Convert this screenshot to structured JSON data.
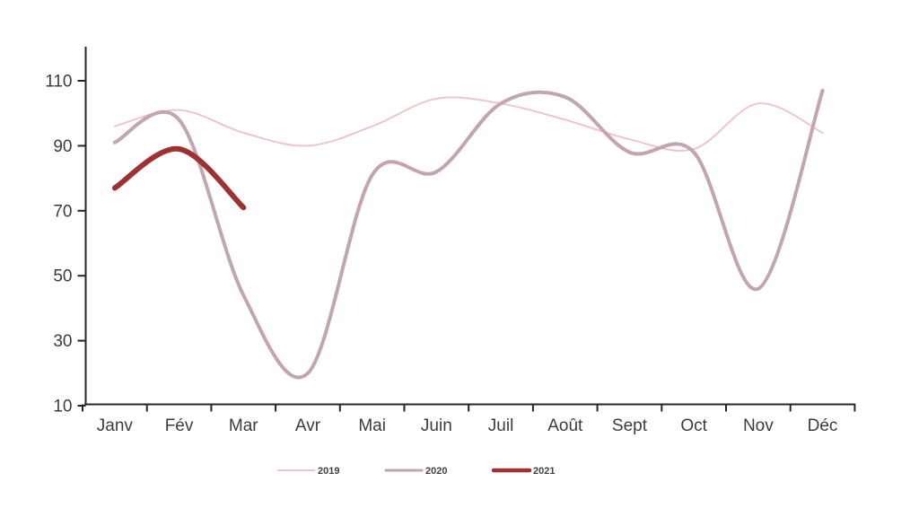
{
  "chart_data": {
    "type": "line",
    "title": "",
    "categories": [
      "Janv",
      "Fév",
      "Mar",
      "Avr",
      "Mai",
      "Juin",
      "Juil",
      "Août",
      "Sept",
      "Oct",
      "Nov",
      "Déc"
    ],
    "yticks": [
      10,
      30,
      50,
      70,
      90,
      110
    ],
    "ylim": [
      10,
      120
    ],
    "grid": false,
    "legend_position": "bottom",
    "series": [
      {
        "name": "2019",
        "values": [
          96,
          101,
          94,
          90,
          96,
          104.5,
          103,
          98,
          92,
          89,
          103,
          94
        ]
      },
      {
        "name": "2020",
        "values": [
          91,
          98,
          44,
          20,
          81,
          82,
          103,
          105,
          88,
          88,
          46,
          107
        ]
      },
      {
        "name": "2021",
        "values": [
          77,
          89,
          71
        ]
      }
    ]
  },
  "styles": {
    "series_colors": [
      "#f2c5c5",
      "#c2a5ae",
      "#9e3232"
    ],
    "series_widths": [
      2,
      4,
      6
    ],
    "legend_widths": [
      2,
      3,
      4.5
    ],
    "axis_color": "#262626",
    "tick_label_color": "#3c3c3c",
    "legend_label_color": "#404040",
    "background": "#ffffff"
  }
}
